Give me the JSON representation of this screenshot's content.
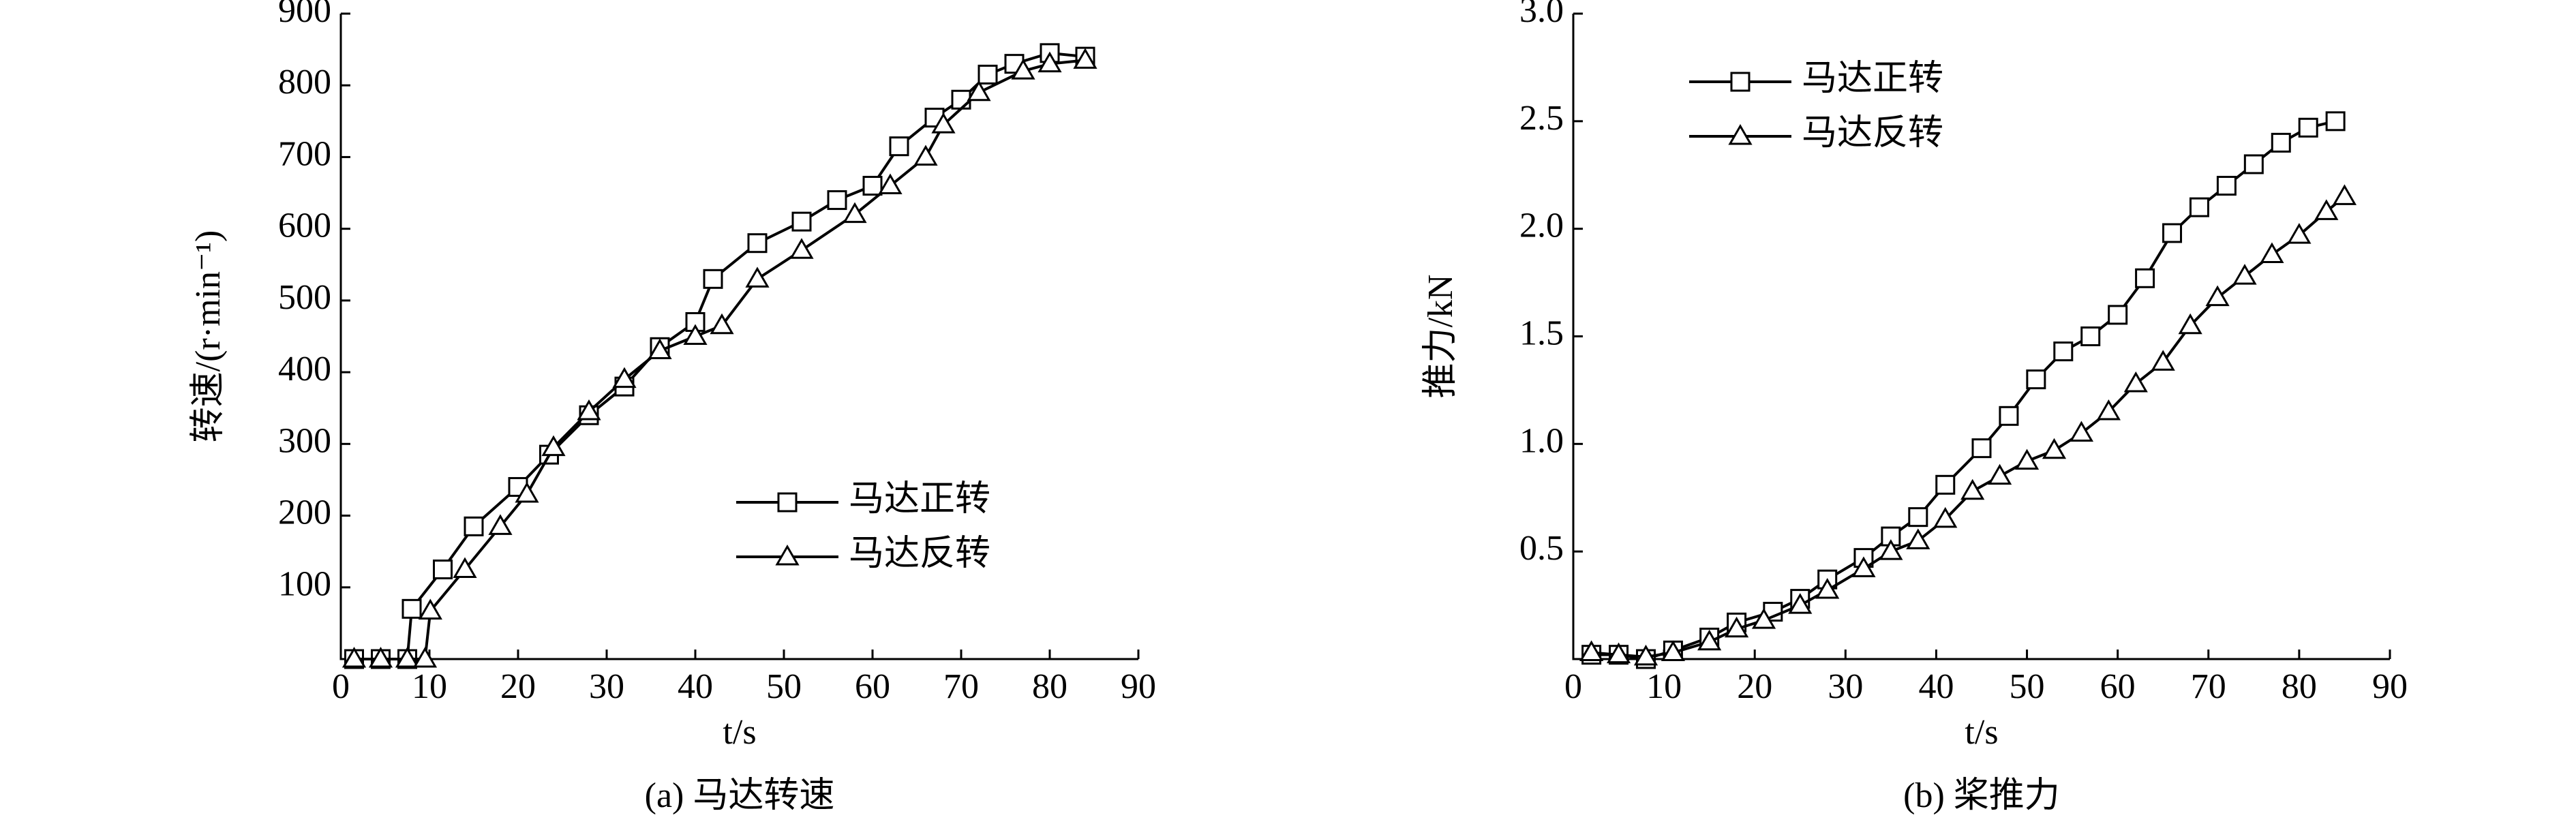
{
  "chart_data": [
    {
      "type": "line",
      "caption": "(a) 马达转速",
      "xlabel": "t/s",
      "ylabel": "转速/(r·min⁻¹)",
      "xlim": [
        0,
        90
      ],
      "xticks": [
        0,
        10,
        20,
        30,
        40,
        50,
        60,
        70,
        80,
        90
      ],
      "ylim": [
        0,
        900
      ],
      "yticks": [
        100,
        200,
        300,
        400,
        500,
        600,
        700,
        800,
        900
      ],
      "legend": "lower right",
      "series": [
        {
          "name": "马达正转",
          "color": "#000000",
          "marker": "square",
          "x": [
            1.5,
            4.5,
            7.5,
            8,
            11.5,
            15,
            20,
            23.5,
            28,
            32,
            36,
            40,
            42,
            47,
            52,
            56,
            60,
            63,
            67,
            70,
            73,
            76,
            80,
            84
          ],
          "values": [
            0,
            0,
            0,
            70,
            125,
            185,
            240,
            285,
            340,
            380,
            435,
            470,
            530,
            580,
            610,
            640,
            660,
            715,
            755,
            780,
            815,
            830,
            845,
            840
          ]
        },
        {
          "name": "马达反转",
          "color": "#000000",
          "marker": "triangle",
          "x": [
            1.5,
            4.5,
            7.5,
            9.5,
            10.1,
            14,
            18,
            21,
            24,
            28,
            32,
            36,
            40,
            43,
            47,
            52,
            58,
            62,
            66,
            68,
            72,
            77,
            80,
            84
          ],
          "values": [
            0,
            0,
            0,
            0,
            67,
            125,
            185,
            230,
            295,
            345,
            390,
            430,
            450,
            465,
            530,
            570,
            620,
            660,
            700,
            745,
            790,
            820,
            830,
            835
          ]
        }
      ]
    },
    {
      "type": "line",
      "caption": "(b) 桨推力",
      "xlabel": "t/s",
      "ylabel": "推力/kN",
      "xlim": [
        0,
        90
      ],
      "xticks": [
        0,
        10,
        20,
        30,
        40,
        50,
        60,
        70,
        80,
        90
      ],
      "ylim": [
        0,
        3
      ],
      "yticks": [
        0.5,
        {
          "value": 1,
          "label": "1.0"
        },
        1.5,
        {
          "value": 2,
          "label": "2.0"
        },
        2.5,
        {
          "value": 3,
          "label": "3.0"
        }
      ],
      "legend": "upper left",
      "series": [
        {
          "name": "马达正转",
          "color": "#000000",
          "marker": "square",
          "x": [
            2,
            5,
            8,
            11,
            15,
            18,
            22,
            25,
            28,
            32,
            35,
            38,
            41,
            45,
            48,
            51,
            54,
            57,
            60,
            63,
            66,
            69,
            72,
            75,
            78,
            81,
            84
          ],
          "values": [
            0.02,
            0.02,
            0,
            0.04,
            0.1,
            0.17,
            0.22,
            0.28,
            0.37,
            0.47,
            0.57,
            0.66,
            0.81,
            0.98,
            1.13,
            1.3,
            1.43,
            1.5,
            1.6,
            1.77,
            1.98,
            2.1,
            2.2,
            2.3,
            2.4,
            2.47,
            2.5
          ]
        },
        {
          "name": "马达反转",
          "color": "#000000",
          "marker": "triangle",
          "x": [
            2,
            5,
            8,
            11,
            15,
            18,
            21,
            25,
            28,
            32,
            35,
            38,
            41,
            44,
            47,
            50,
            53,
            56,
            59,
            62,
            65,
            68,
            71,
            74,
            77,
            80,
            83,
            85
          ],
          "values": [
            0.03,
            0.02,
            0.01,
            0.03,
            0.08,
            0.14,
            0.18,
            0.25,
            0.32,
            0.42,
            0.5,
            0.55,
            0.65,
            0.78,
            0.85,
            0.92,
            0.97,
            1.05,
            1.15,
            1.28,
            1.38,
            1.55,
            1.68,
            1.78,
            1.88,
            1.97,
            2.08,
            2.15
          ]
        }
      ]
    }
  ]
}
